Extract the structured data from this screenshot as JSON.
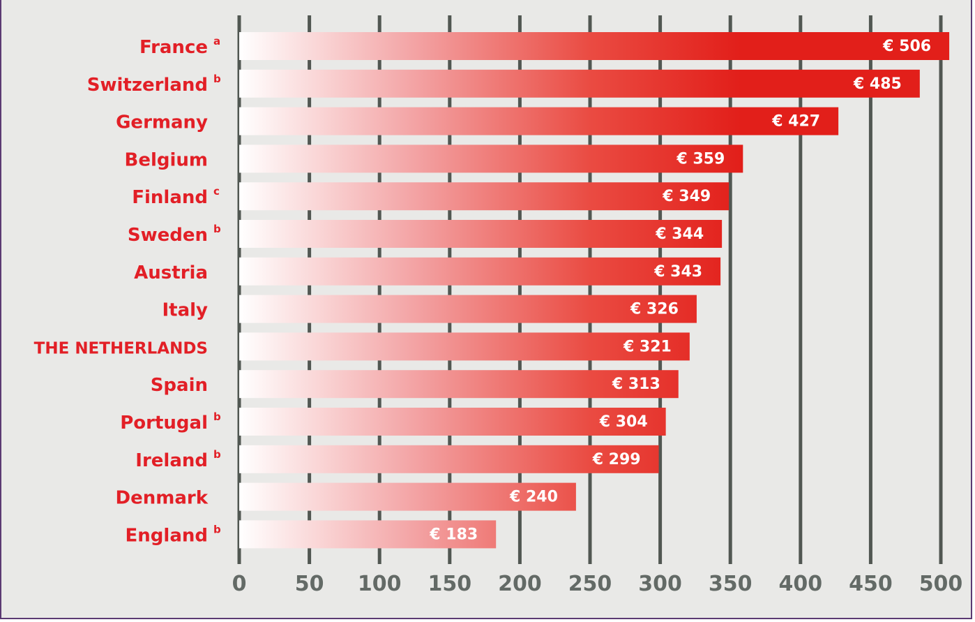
{
  "chart_data": {
    "type": "bar",
    "orientation": "horizontal",
    "categories": [
      "France",
      "Switzerland",
      "Germany",
      "Belgium",
      "Finland",
      "Sweden",
      "Austria",
      "Italy",
      "THE NETHERLANDS",
      "Spain",
      "Portugal",
      "Ireland",
      "Denmark",
      "England"
    ],
    "footnotes": [
      "a",
      "b",
      "",
      "",
      "c",
      "b",
      "",
      "",
      "",
      "",
      "b",
      "b",
      "",
      "b"
    ],
    "values": [
      506,
      485,
      427,
      359,
      349,
      344,
      343,
      326,
      321,
      313,
      304,
      299,
      240,
      183
    ],
    "value_labels": [
      "€ 506",
      "€ 485",
      "€ 427",
      "€ 359",
      "€ 349",
      "€ 344",
      "€ 343",
      "€ 326",
      "€ 321",
      "€ 313",
      "€ 304",
      "€ 299",
      "€ 240",
      "€ 183"
    ],
    "xlim": [
      0,
      500
    ],
    "xticks": [
      0,
      50,
      100,
      150,
      200,
      250,
      300,
      350,
      400,
      450,
      500
    ],
    "grid": true,
    "bar_color": "#e21f26",
    "background_color": "#e9e9e7",
    "grid_color": "#515752"
  }
}
